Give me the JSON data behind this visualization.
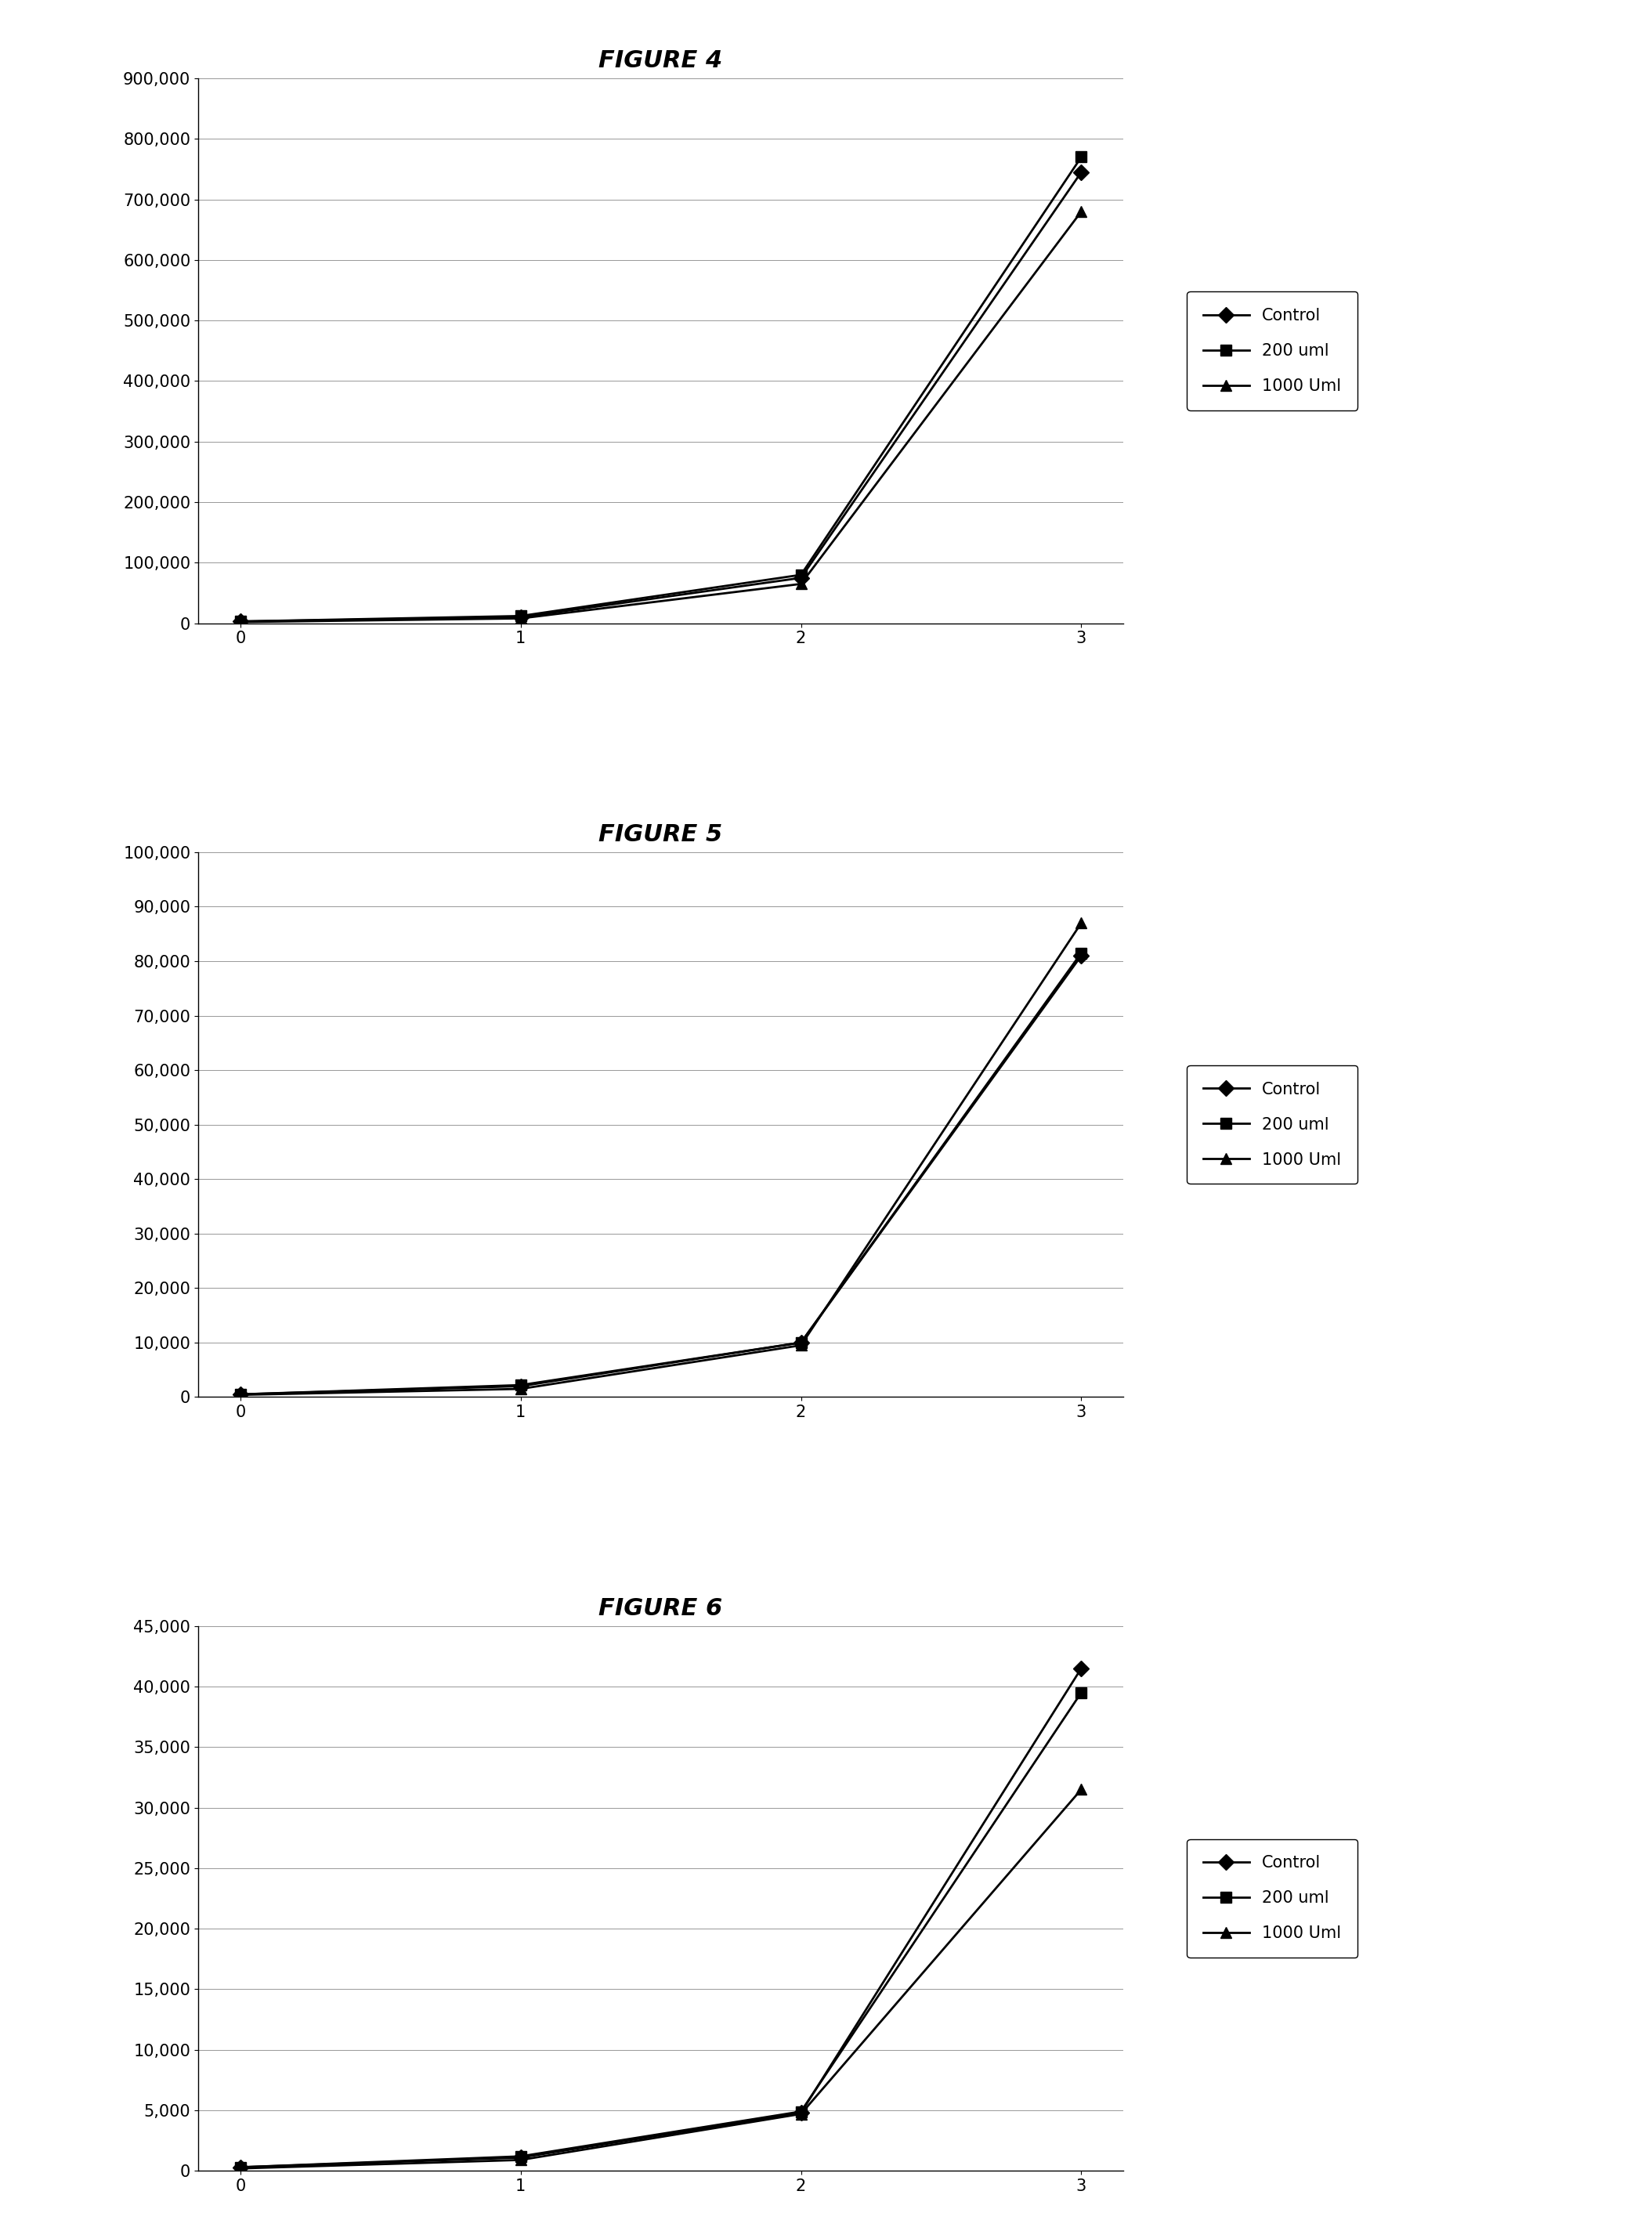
{
  "fig4": {
    "title": "FIGURE 4",
    "x": [
      0,
      1,
      2,
      3
    ],
    "control": [
      3000,
      10000,
      75000,
      745000
    ],
    "uml200": [
      3000,
      12000,
      80000,
      770000
    ],
    "uml1000": [
      2000,
      8000,
      65000,
      680000
    ],
    "ylim": [
      0,
      900000
    ],
    "yticks": [
      0,
      100000,
      200000,
      300000,
      400000,
      500000,
      600000,
      700000,
      800000,
      900000
    ],
    "ytick_labels": [
      "0",
      "100,000",
      "200,000",
      "300,000",
      "400,000",
      "500,000",
      "600,000",
      "700,000",
      "800,000",
      "900,000"
    ]
  },
  "fig5": {
    "title": "FIGURE 5",
    "x": [
      0,
      1,
      2,
      3
    ],
    "control": [
      500,
      2000,
      10000,
      81000
    ],
    "uml200": [
      500,
      2200,
      10000,
      81500
    ],
    "uml1000": [
      400,
      1500,
      9500,
      87000
    ],
    "ylim": [
      0,
      100000
    ],
    "yticks": [
      0,
      10000,
      20000,
      30000,
      40000,
      50000,
      60000,
      70000,
      80000,
      90000,
      100000
    ],
    "ytick_labels": [
      "0",
      "10,000",
      "20,000",
      "30,000",
      "40,000",
      "50,000",
      "60,000",
      "70,000",
      "80,000",
      "90,000",
      "100,000"
    ]
  },
  "fig6": {
    "title": "FIGURE 6",
    "x": [
      0,
      1,
      2,
      3
    ],
    "control": [
      300,
      1100,
      4800,
      41500
    ],
    "uml200": [
      300,
      1200,
      4900,
      39500
    ],
    "uml1000": [
      200,
      900,
      4700,
      31500
    ],
    "ylim": [
      0,
      45000
    ],
    "yticks": [
      0,
      5000,
      10000,
      15000,
      20000,
      25000,
      30000,
      35000,
      40000,
      45000
    ],
    "ytick_labels": [
      "0",
      "5,000",
      "10,000",
      "15,000",
      "20,000",
      "25,000",
      "30,000",
      "35,000",
      "40,000",
      "45,000"
    ]
  },
  "legend_labels": [
    "Control",
    "200 uml",
    "1000 Uml"
  ],
  "line_color": "#000000",
  "marker_control": "D",
  "marker_200": "s",
  "marker_1000": "^",
  "bg_color": "#ffffff",
  "title_fontsize": 22,
  "tick_fontsize": 15,
  "legend_fontsize": 15,
  "linewidth": 2.0,
  "markersize": 10
}
